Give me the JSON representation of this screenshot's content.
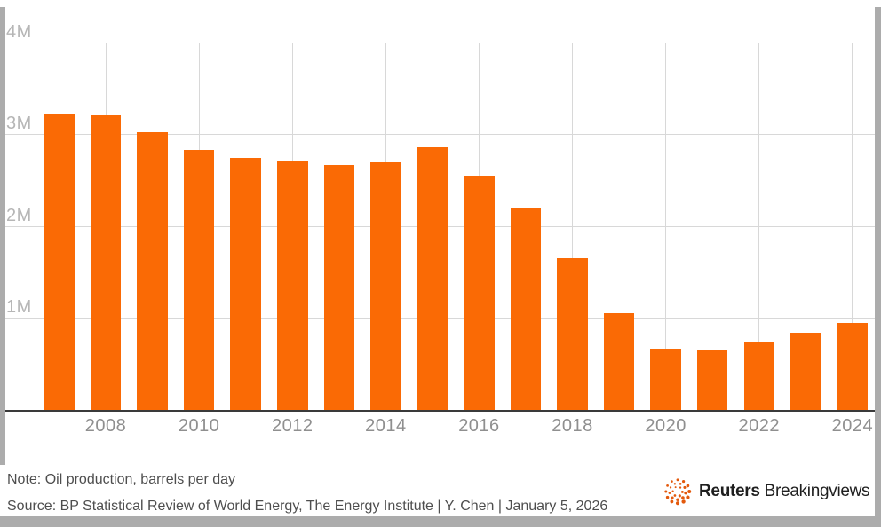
{
  "chart_data": {
    "type": "bar",
    "title": "",
    "x": [
      2007,
      2008,
      2009,
      2010,
      2011,
      2012,
      2013,
      2014,
      2015,
      2016,
      2017,
      2018,
      2019,
      2020,
      2021,
      2022,
      2023,
      2024
    ],
    "values": [
      3.23,
      3.21,
      3.02,
      2.83,
      2.74,
      2.7,
      2.67,
      2.69,
      2.86,
      2.55,
      2.2,
      1.65,
      1.05,
      0.67,
      0.66,
      0.73,
      0.84,
      0.95
    ],
    "unit": "million barrels per day",
    "ylim": [
      0,
      4
    ],
    "yticks": [
      {
        "value": 4,
        "label": "4M"
      },
      {
        "value": 3,
        "label": "3M"
      },
      {
        "value": 2,
        "label": "2M"
      },
      {
        "value": 1,
        "label": "1M"
      }
    ],
    "xticks": [
      2008,
      2010,
      2012,
      2014,
      2016,
      2018,
      2020,
      2022,
      2024
    ],
    "grid": true,
    "legend": "none"
  },
  "footer": {
    "note": "Note: Oil production, barrels per day",
    "source": "Source: BP Statistical Review of World Energy, The Energy Institute | Y. Chen | January 5, 2026",
    "logo_bold": "Reuters",
    "logo_regular": "Breakingviews"
  },
  "colors": {
    "bar": "#fa6a05",
    "grid": "#d8d8d8",
    "axis_line": "#3a3a3a",
    "y_tick_label": "#b6b6b6",
    "x_tick_label": "#8f8f8f",
    "footer_text": "#4e4e4e",
    "chrome_gray": "#acacac",
    "logo_text": "#1f1f1f",
    "logo_dot": "#e3590c"
  }
}
